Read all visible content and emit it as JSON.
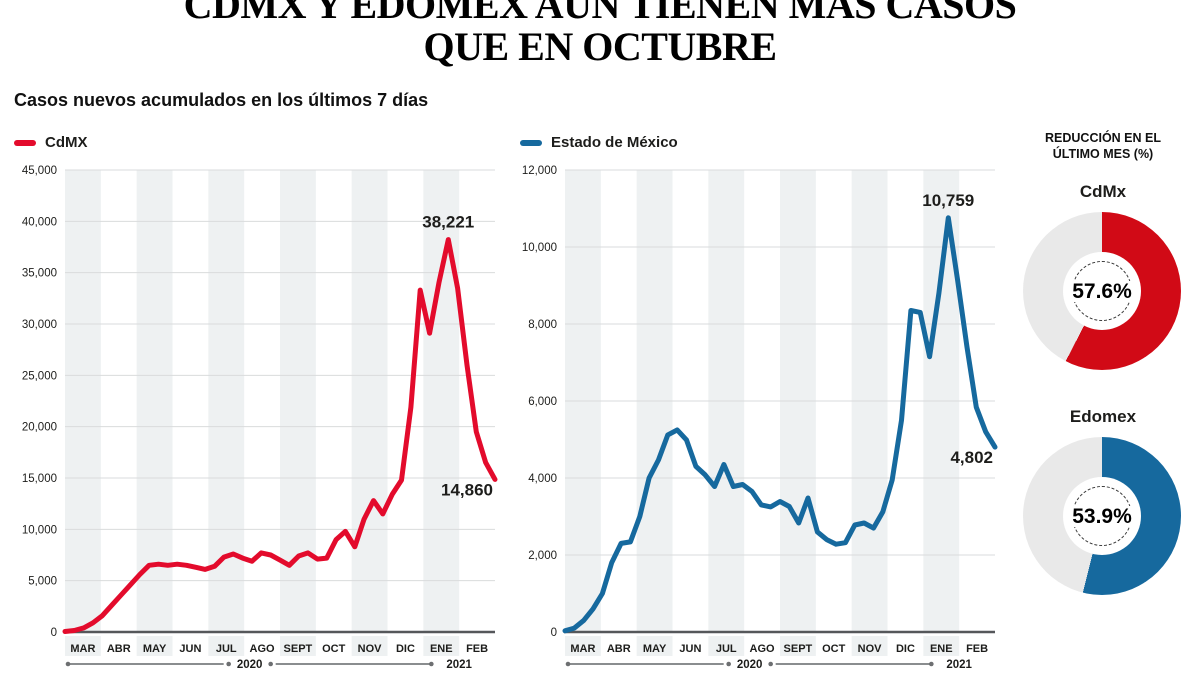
{
  "header": {
    "title_line1": "CDMX Y EDOMEX AÚN TIENEN MÁS CASOS",
    "title_line2": "QUE EN OCTUBRE",
    "subtitle": "Casos nuevos acumulados en los últimos 7 días"
  },
  "months": [
    "MAR",
    "ABR",
    "MAY",
    "JUN",
    "JUL",
    "AGO",
    "SEPT",
    "OCT",
    "NOV",
    "DIC",
    "ENE",
    "FEB"
  ],
  "year_axis": {
    "left": "2020",
    "right": "2021"
  },
  "colors": {
    "stripe": "#eef1f2",
    "grid": "#d9dbdc",
    "axis": "#55575a",
    "text": "#1d1d1b",
    "year_line": "#8a8d8f",
    "donut_track": "#e9e9e9"
  },
  "chart_data": [
    {
      "type": "line",
      "legend": "CdMX",
      "color": "#e30b2c",
      "ylim": [
        0,
        45000
      ],
      "ytick_step": 5000,
      "categories": [
        "MAR",
        "ABR",
        "MAY",
        "JUN",
        "JUL",
        "AGO",
        "SEPT",
        "OCT",
        "NOV",
        "DIC",
        "ENE",
        "FEB"
      ],
      "values": [
        50,
        150,
        400,
        900,
        1600,
        2600,
        3600,
        4600,
        5600,
        6500,
        6600,
        6500,
        6600,
        6500,
        6300,
        6100,
        6400,
        7300,
        7600,
        7200,
        6900,
        7700,
        7500,
        7000,
        6500,
        7400,
        7700,
        7100,
        7200,
        9000,
        9800,
        8300,
        11000,
        12800,
        11500,
        13400,
        14800,
        21900,
        33300,
        29100,
        34000,
        38221,
        33500,
        26000,
        19500,
        16500,
        14860
      ],
      "annotations": [
        {
          "at": "max",
          "text": "38,221"
        },
        {
          "at": "last",
          "text": "14,860"
        }
      ]
    },
    {
      "type": "line",
      "legend": "Estado de México",
      "color": "#16699e",
      "ylim": [
        0,
        12000
      ],
      "ytick_step": 2000,
      "categories": [
        "MAR",
        "ABR",
        "MAY",
        "JUN",
        "JUL",
        "AGO",
        "SEPT",
        "OCT",
        "NOV",
        "DIC",
        "ENE",
        "FEB"
      ],
      "values": [
        30,
        100,
        300,
        600,
        1000,
        1800,
        2300,
        2340,
        3000,
        4000,
        4470,
        5120,
        5250,
        4990,
        4300,
        4080,
        3780,
        4350,
        3780,
        3830,
        3650,
        3300,
        3250,
        3390,
        3260,
        2830,
        3480,
        2600,
        2400,
        2280,
        2320,
        2780,
        2830,
        2700,
        3120,
        3950,
        5500,
        8350,
        8300,
        7150,
        8800,
        10759,
        9140,
        7400,
        5840,
        5200,
        4802
      ],
      "annotations": [
        {
          "at": "max",
          "text": "10,759"
        },
        {
          "at": "last",
          "text": "4,802"
        }
      ]
    }
  ],
  "reduction_panel": {
    "title_line1": "REDUCCIÓN EN EL",
    "title_line2": "ÚLTIMO MES (%)",
    "donuts": [
      {
        "label": "CdMx",
        "percent": 57.6,
        "display": "57.6%",
        "color": "#d10a16"
      },
      {
        "label": "Edomex",
        "percent": 53.9,
        "display": "53.9%",
        "color": "#16699e"
      }
    ]
  }
}
